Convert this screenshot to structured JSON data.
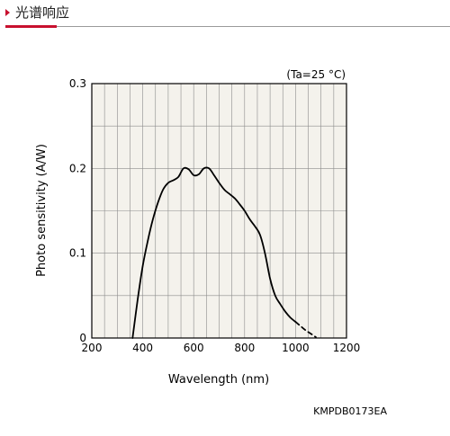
{
  "header": {
    "title": "光谱响应"
  },
  "chart_data": {
    "type": "line",
    "condition": "(Ta=25 °C)",
    "xlabel": "Wavelength (nm)",
    "ylabel": "Photo sensitivity (A/W)",
    "xlim": [
      200,
      1200
    ],
    "ylim": [
      0,
      0.3
    ],
    "xticks": [
      200,
      400,
      600,
      800,
      1000,
      1200
    ],
    "yticks": [
      0,
      0.1,
      0.2,
      0.3
    ],
    "xtick_labels": [
      "200",
      "400",
      "600",
      "800",
      "1000",
      "1200"
    ],
    "ytick_labels": [
      "0",
      "0.1",
      "0.2",
      "0.3"
    ],
    "grid": true,
    "series": [
      {
        "style": "solid",
        "x": [
          360,
          380,
          400,
          420,
          440,
          460,
          480,
          500,
          520,
          540,
          560,
          580,
          600,
          620,
          640,
          660,
          680,
          700,
          720,
          740,
          760,
          780,
          800,
          820,
          840,
          860,
          880,
          900,
          920,
          940,
          960,
          980,
          1000
        ],
        "y": [
          0,
          0.045,
          0.085,
          0.115,
          0.14,
          0.16,
          0.175,
          0.183,
          0.186,
          0.19,
          0.2,
          0.199,
          0.192,
          0.193,
          0.2,
          0.2,
          0.192,
          0.183,
          0.175,
          0.17,
          0.165,
          0.158,
          0.15,
          0.14,
          0.132,
          0.122,
          0.1,
          0.07,
          0.05,
          0.04,
          0.031,
          0.024,
          0.019
        ]
      },
      {
        "style": "dashed",
        "x": [
          1000,
          1020,
          1040,
          1060,
          1080
        ],
        "y": [
          0.019,
          0.014,
          0.009,
          0.005,
          0.001
        ]
      }
    ]
  },
  "footer": {
    "code": "KMPDB0173EA"
  }
}
